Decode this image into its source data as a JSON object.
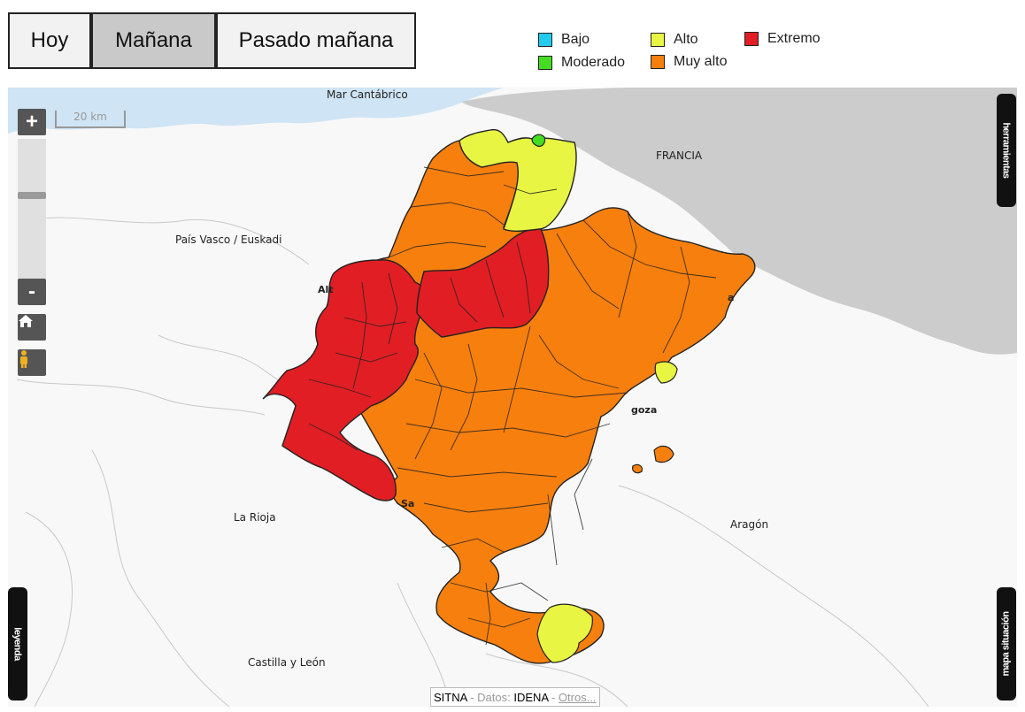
{
  "tabs": [
    {
      "label": "Hoy",
      "active": false
    },
    {
      "label": "Mañana",
      "active": true
    },
    {
      "label": "Pasado mañana",
      "active": false
    }
  ],
  "legend": [
    {
      "label": "Bajo",
      "color": "#22ccee"
    },
    {
      "label": "Moderado",
      "color": "#44dd22"
    },
    {
      "label": "Alto",
      "color": "#e8f542"
    },
    {
      "label": "Muy alto",
      "color": "#f77f0e"
    },
    {
      "label": "Extremo",
      "color": "#e01e24"
    }
  ],
  "map": {
    "scale_label": "20 km",
    "zoom_in_label": "+",
    "zoom_out_label": "-",
    "zoom_level_fraction": 0.6,
    "home_icon": "home-icon",
    "pegman_icon": "pegman-icon",
    "side_tab_tools": "herramientas",
    "side_tab_legend": "leyenda",
    "side_tab_situation": "mapa situación",
    "labels": {
      "sea": "Mar Cantábrico",
      "france": "FRANCIA",
      "basque": "País Vasco / Euskadi",
      "rioja": "La Rioja",
      "castilla": "Castilla y León",
      "aragon": "Aragón",
      "town_alt": "Alt",
      "town_goza": "goza",
      "town_sa": "Sa",
      "town_a": "a"
    },
    "attribution": {
      "sitna": "SITNA",
      "sep1": " - Datos: ",
      "idena": "IDENA",
      "sep2": " - ",
      "others": "Otros..."
    }
  }
}
